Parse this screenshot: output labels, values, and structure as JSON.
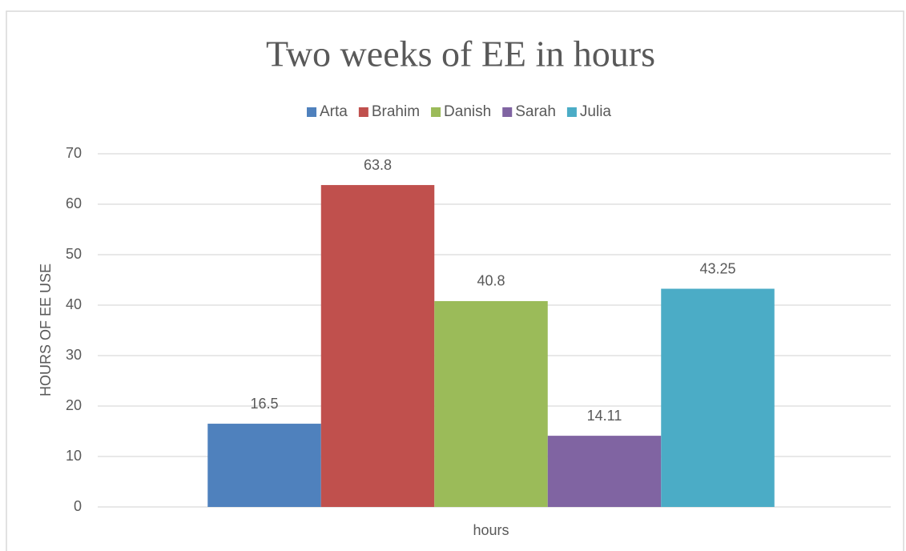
{
  "chart_data": {
    "type": "bar",
    "title": "Two weeks of EE in hours",
    "categories": [
      "hours"
    ],
    "ylabel": "HOURS OF EE USE",
    "series": [
      {
        "name": "Arta",
        "color": "#4f81bd",
        "values": [
          16.5
        ]
      },
      {
        "name": "Brahim",
        "color": "#c0504d",
        "values": [
          63.8
        ]
      },
      {
        "name": "Danish",
        "color": "#9bbb59",
        "values": [
          40.8
        ]
      },
      {
        "name": "Sarah",
        "color": "#8064a2",
        "values": [
          14.11
        ]
      },
      {
        "name": "Julia",
        "color": "#4bacc6",
        "values": [
          43.25
        ]
      }
    ],
    "ylim": [
      0,
      70
    ],
    "yticks": [
      0,
      10,
      20,
      30,
      40,
      50,
      60,
      70
    ],
    "grid": true,
    "legend": "top"
  }
}
